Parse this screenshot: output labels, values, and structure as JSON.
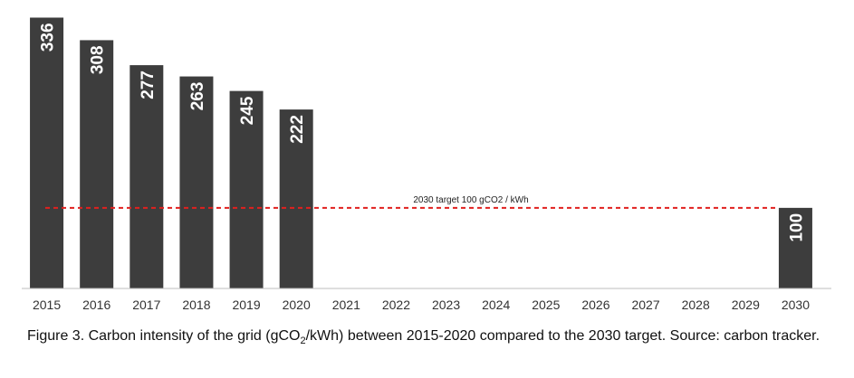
{
  "chart_data": {
    "type": "bar",
    "categories": [
      "2015",
      "2016",
      "2017",
      "2018",
      "2019",
      "2020",
      "2021",
      "2022",
      "2023",
      "2024",
      "2025",
      "2026",
      "2027",
      "2028",
      "2029",
      "2030"
    ],
    "values": [
      336,
      308,
      277,
      263,
      245,
      222,
      null,
      null,
      null,
      null,
      null,
      null,
      null,
      null,
      null,
      100
    ],
    "data_labels": [
      "336",
      "308",
      "277",
      "263",
      "245",
      "222",
      "",
      "",
      "",
      "",
      "",
      "",
      "",
      "",
      "",
      "100"
    ],
    "ylim": [
      0,
      350
    ],
    "bar_color": "#3d3d3d",
    "target_line": {
      "value": 100,
      "label": "2030 target 100 gCO2 / kWh",
      "color": "#e0201f",
      "style": "dashed"
    },
    "grid": false,
    "legend": "none"
  },
  "caption": {
    "prefix": "Figure 3. Carbon intensity  of the grid (gCO",
    "subscript": "2",
    "suffix": "/kWh) between 2015-2020 compared to the  2030 target. Source: carbon tracker."
  }
}
